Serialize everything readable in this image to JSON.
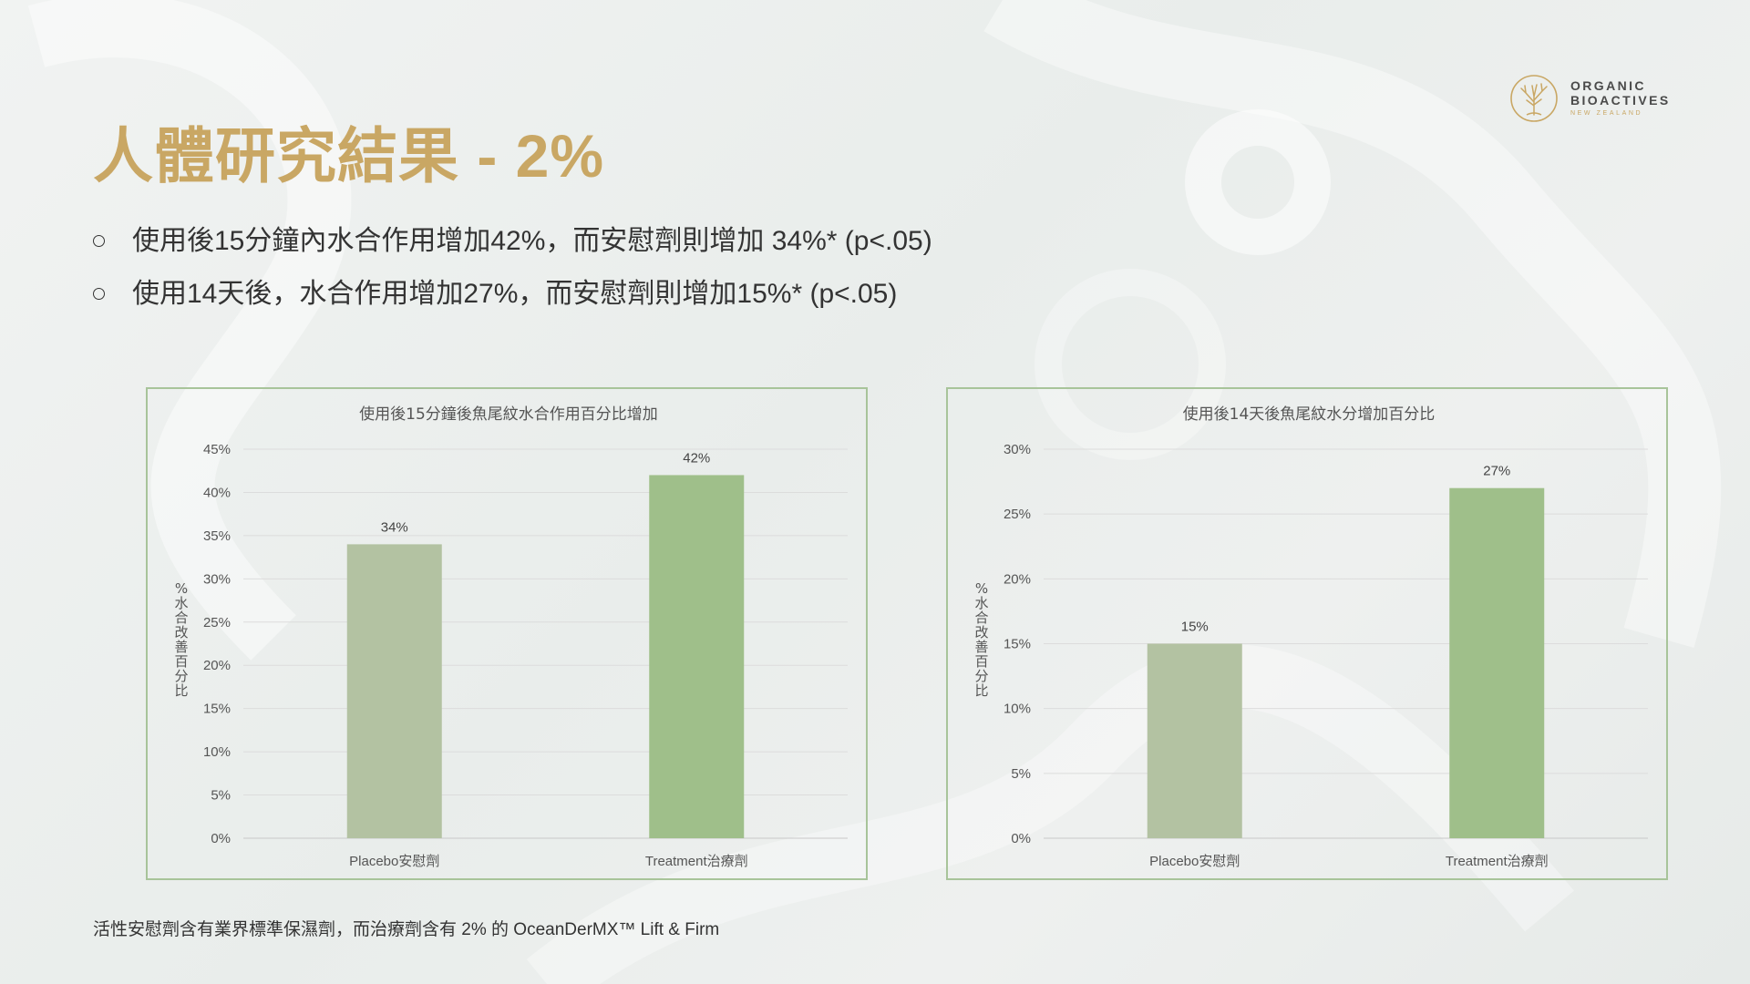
{
  "slide": {
    "title": "人體研究結果 - 2%",
    "bullets": [
      "使用後15分鐘內水合作用增加42%，而安慰劑則增加 34%* (p<.05)",
      "使用14天後，水合作用增加27%，而安慰劑則增加15%* (p<.05)"
    ],
    "footnote": "活性安慰劑含有業界標準保濕劑，而治療劑含有 2% 的 OceanDerMX™ Lift & Firm"
  },
  "logo": {
    "line1": "ORGANIC",
    "line2": "BIOACTIVES",
    "line3": "NEW ZEALAND"
  },
  "colors": {
    "title_gold": "#c9a764",
    "placebo_bar": "#b3c2a2",
    "treatment_bar": "#9fbf8a",
    "frame_border": "#a8c49a"
  },
  "chart_data": [
    {
      "type": "bar",
      "title": "使用後15分鐘後魚尾紋水合作用百分比增加",
      "ylabel": "%水合改善百分比",
      "categories": [
        "Placebo安慰劑",
        "Treatment治療劑"
      ],
      "values": [
        34,
        42
      ],
      "data_labels": [
        "34%",
        "42%"
      ],
      "ylim": [
        0,
        45
      ],
      "yticks": [
        "0%",
        "5%",
        "10%",
        "15%",
        "20%",
        "25%",
        "30%",
        "35%",
        "40%",
        "45%"
      ],
      "grid": true,
      "bar_colors": [
        "#b3c2a2",
        "#9fbf8a"
      ]
    },
    {
      "type": "bar",
      "title": "使用後14天後魚尾紋水分增加百分比",
      "ylabel": "%水合改善百分比",
      "categories": [
        "Placebo安慰劑",
        "Treatment治療劑"
      ],
      "values": [
        15,
        27
      ],
      "data_labels": [
        "15%",
        "27%"
      ],
      "ylim": [
        0,
        30
      ],
      "yticks": [
        "0%",
        "5%",
        "10%",
        "15%",
        "20%",
        "25%",
        "30%"
      ],
      "grid": true,
      "bar_colors": [
        "#b3c2a2",
        "#9fbf8a"
      ]
    }
  ]
}
